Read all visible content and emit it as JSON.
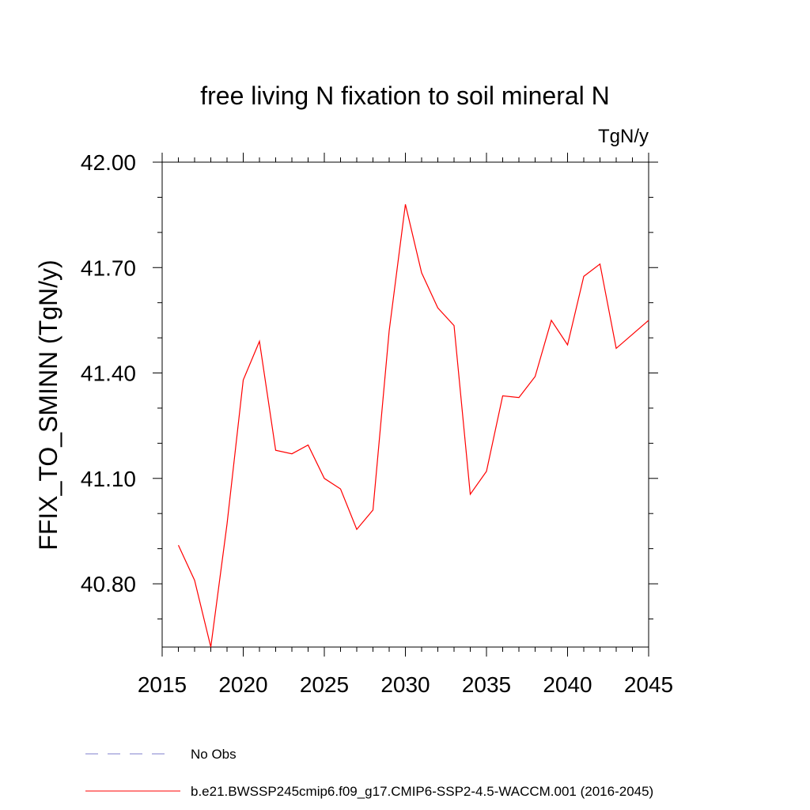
{
  "chart_data": {
    "type": "line",
    "title": "free living N fixation to soil mineral N",
    "units_label": "TgN/y",
    "ylabel": "FFIX_TO_SMINN  (TgN/y)",
    "xlabel": "",
    "xlim": [
      2015,
      2045
    ],
    "ylim": [
      40.62,
      42.0
    ],
    "x_ticks": [
      2015,
      2020,
      2025,
      2030,
      2035,
      2040,
      2045
    ],
    "x_tick_labels": [
      "2015",
      "2020",
      "2025",
      "2030",
      "2035",
      "2040",
      "2045"
    ],
    "y_ticks": [
      40.8,
      41.1,
      41.4,
      41.7,
      42.0
    ],
    "y_tick_labels": [
      "40.80",
      "41.10",
      "41.40",
      "41.70",
      "42.00"
    ],
    "series": [
      {
        "name": "b.e21.BWSSP245cmip6.f09_g17.CMIP6-SSP2-4.5-WACCM.001 (2016-2045)",
        "color": "#ff0000",
        "x": [
          2016,
          2017,
          2018,
          2019,
          2020,
          2021,
          2022,
          2023,
          2024,
          2025,
          2026,
          2027,
          2028,
          2029,
          2030,
          2031,
          2032,
          2033,
          2034,
          2035,
          2036,
          2037,
          2038,
          2039,
          2040,
          2041,
          2042,
          2043,
          2044,
          2045
        ],
        "values": [
          40.91,
          40.81,
          40.62,
          40.97,
          41.38,
          41.49,
          41.18,
          41.17,
          41.195,
          41.1,
          41.07,
          40.955,
          41.01,
          41.52,
          41.88,
          41.685,
          41.585,
          41.535,
          41.055,
          41.12,
          41.335,
          41.33,
          41.39,
          41.55,
          41.48,
          41.675,
          41.71,
          41.47,
          41.51,
          41.55
        ]
      }
    ],
    "legend": [
      {
        "label": "No Obs",
        "color": "#7f7fcc",
        "style": "dashed"
      },
      {
        "label": "b.e21.BWSSP245cmip6.f09_g17.CMIP6-SSP2-4.5-WACCM.001 (2016-2045)",
        "color": "#ff0000",
        "style": "solid"
      }
    ]
  }
}
